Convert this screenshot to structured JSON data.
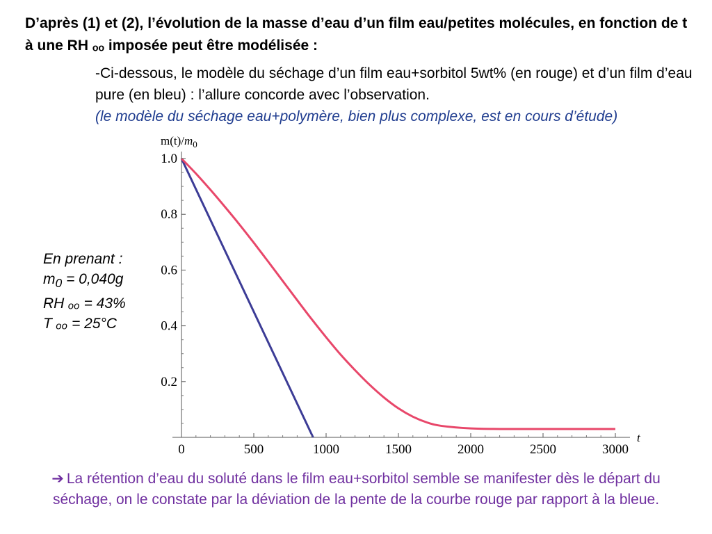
{
  "title": "D’après (1) et (2), l’évolution de la masse d’eau d’un film eau/petites molécules, en fonction de t à une RH ₒₒ imposée peut être modélisée :",
  "intro": {
    "line": "-Ci-dessous, le modèle du séchage d’un film eau+sorbitol 5wt% (en rouge) et d’un film d’eau pure (en bleu) : l’allure concorde avec l’observation.",
    "note": "(le modèle du séchage eau+polymère, bien plus complexe, est en cours d’étude)",
    "note_color": "#1f3c8f"
  },
  "params": {
    "heading": "En prenant :",
    "m0_label": "m",
    "m0_sub": "0",
    "m0_value": " = 0,040g",
    "rh": "RH ₒₒ = 43%",
    "t": "T ₒₒ = 25°C"
  },
  "conclusion": {
    "arrow_icon": "right-arrow-icon",
    "text": "La rétention d’eau du soluté dans le film eau+sorbitol semble se manifester dès le départ du séchage, on le constate par la déviation de la pente de la courbe rouge par rapport à la bleue.",
    "color": "#7030a0"
  },
  "chart_data": {
    "type": "line",
    "ylabel_main": "m(t)/",
    "ylabel_m": "m",
    "ylabel_sub": "0",
    "xlabel": "t",
    "xlim": [
      0,
      3000
    ],
    "ylim": [
      0,
      1.0
    ],
    "x_ticks": [
      0,
      500,
      1000,
      1500,
      2000,
      2500,
      3000
    ],
    "y_ticks": [
      0.2,
      0.4,
      0.6,
      0.8,
      1.0
    ],
    "x_tick_labels": [
      "0",
      "500",
      "1000",
      "1500",
      "2000",
      "2500",
      "3000"
    ],
    "y_tick_labels": [
      "0.2",
      "0.4",
      "0.6",
      "0.8",
      "1.0"
    ],
    "grid": false,
    "series": [
      {
        "color": "#3c3c96",
        "x": [
          0,
          910
        ],
        "y": [
          1.0,
          0.0
        ]
      },
      {
        "color": "#e8476a",
        "x": [
          0,
          100,
          200,
          300,
          400,
          500,
          600,
          700,
          800,
          900,
          1000,
          1100,
          1200,
          1300,
          1400,
          1500,
          1600,
          1700,
          1800,
          2000,
          2200,
          2500,
          3000
        ],
        "y": [
          1.0,
          0.946,
          0.888,
          0.827,
          0.764,
          0.698,
          0.63,
          0.561,
          0.492,
          0.424,
          0.359,
          0.297,
          0.241,
          0.189,
          0.143,
          0.104,
          0.074,
          0.053,
          0.041,
          0.032,
          0.03,
          0.03,
          0.03
        ]
      }
    ]
  }
}
